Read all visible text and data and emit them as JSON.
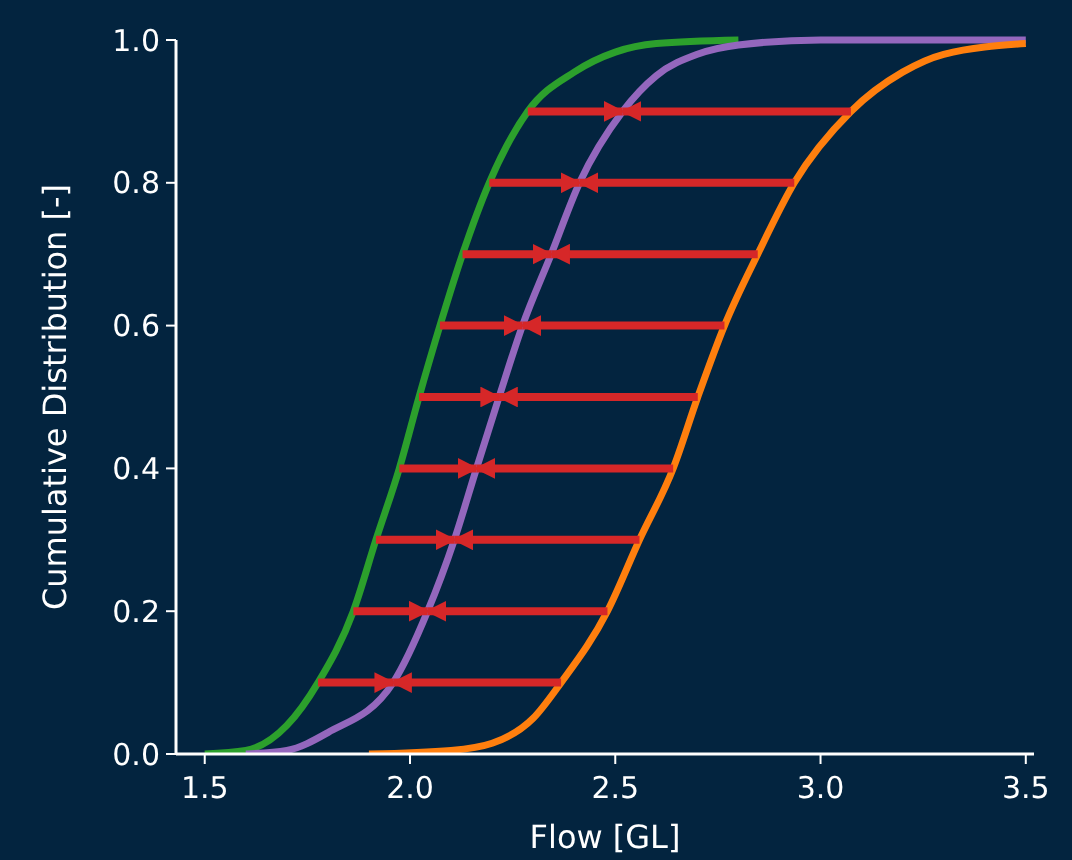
{
  "chart_data": {
    "type": "line",
    "xlabel": "Flow [GL]",
    "ylabel": "Cumulative Distribution [-]",
    "xlim": [
      1.43,
      3.52
    ],
    "xticks": [
      1.5,
      {
        "value": 2,
        "label": "2.0"
      },
      2.5,
      {
        "value": 3,
        "label": "3.0"
      },
      3.5
    ],
    "ylim": [
      0,
      1
    ],
    "yticks": [
      {
        "value": 0,
        "label": "0.0"
      },
      0.2,
      0.4,
      0.6,
      0.8,
      {
        "value": 1,
        "label": "1.0"
      }
    ],
    "grid": false,
    "series": [
      {
        "color": "#2ca02c",
        "x": [
          1.5,
          1.6,
          1.7,
          1.776,
          1.862,
          1.917,
          1.974,
          2.022,
          2.073,
          2.128,
          2.193,
          2.287,
          2.4,
          2.5,
          2.6,
          2.8
        ],
        "values": [
          0,
          0.005,
          0.04,
          0.1,
          0.2,
          0.3,
          0.4,
          0.5,
          0.6,
          0.7,
          0.8,
          0.9,
          0.955,
          0.983,
          0.995,
          1
        ]
      },
      {
        "color": "#9467bd",
        "x": [
          1.6,
          1.7,
          1.8,
          1.959,
          2.043,
          2.108,
          2.162,
          2.217,
          2.274,
          2.344,
          2.413,
          2.518,
          2.6,
          2.7,
          2.8,
          3.0,
          3.5
        ],
        "values": [
          0,
          0.005,
          0.03,
          0.1,
          0.2,
          0.3,
          0.4,
          0.5,
          0.6,
          0.7,
          0.8,
          0.9,
          0.95,
          0.98,
          0.993,
          1,
          1
        ]
      },
      {
        "color": "#ff7f0e",
        "x": [
          1.9,
          2.1,
          2.2,
          2.3,
          2.368,
          2.481,
          2.559,
          2.641,
          2.701,
          2.766,
          2.847,
          2.936,
          3.074,
          3.2,
          3.3,
          3.5
        ],
        "values": [
          0,
          0.005,
          0.015,
          0.05,
          0.1,
          0.2,
          0.3,
          0.4,
          0.5,
          0.6,
          0.7,
          0.8,
          0.9,
          0.955,
          0.98,
          0.995
        ]
      },
      {
        "color": "#d62728",
        "x": [
          1.776,
          1.959
        ],
        "values": [
          0.1,
          0.1
        ]
      },
      {
        "color": "#d62728",
        "x": [
          1.862,
          2.043
        ],
        "values": [
          0.2,
          0.2
        ]
      },
      {
        "color": "#d62728",
        "x": [
          1.917,
          2.108
        ],
        "values": [
          0.3,
          0.3
        ]
      },
      {
        "color": "#d62728",
        "x": [
          1.974,
          2.162
        ],
        "values": [
          0.4,
          0.4
        ]
      },
      {
        "color": "#d62728",
        "x": [
          2.022,
          2.217
        ],
        "values": [
          0.5,
          0.5
        ]
      },
      {
        "color": "#d62728",
        "x": [
          2.073,
          2.274
        ],
        "values": [
          0.6,
          0.6
        ]
      },
      {
        "color": "#d62728",
        "x": [
          2.128,
          2.344
        ],
        "values": [
          0.7,
          0.7
        ]
      },
      {
        "color": "#d62728",
        "x": [
          2.193,
          2.413
        ],
        "values": [
          0.8,
          0.8
        ]
      },
      {
        "color": "#d62728",
        "x": [
          2.287,
          2.518
        ],
        "values": [
          0.9,
          0.9
        ]
      },
      {
        "color": "#d62728",
        "x": [
          2.368,
          1.959
        ],
        "values": [
          0.1,
          0.1
        ]
      },
      {
        "color": "#d62728",
        "x": [
          2.481,
          2.043
        ],
        "values": [
          0.2,
          0.2
        ]
      },
      {
        "color": "#d62728",
        "x": [
          2.559,
          2.108
        ],
        "values": [
          0.3,
          0.3
        ]
      },
      {
        "color": "#d62728",
        "x": [
          2.641,
          2.162
        ],
        "values": [
          0.4,
          0.4
        ]
      },
      {
        "color": "#d62728",
        "x": [
          2.701,
          2.217
        ],
        "values": [
          0.5,
          0.5
        ]
      },
      {
        "color": "#d62728",
        "x": [
          2.766,
          2.274
        ],
        "values": [
          0.6,
          0.6
        ]
      },
      {
        "color": "#d62728",
        "x": [
          2.847,
          2.344
        ],
        "values": [
          0.7,
          0.7
        ]
      },
      {
        "color": "#d62728",
        "x": [
          2.936,
          2.413
        ],
        "values": [
          0.8,
          0.8
        ]
      },
      {
        "color": "#d62728",
        "x": [
          3.074,
          2.518
        ],
        "values": [
          0.9,
          0.9
        ]
      }
    ]
  }
}
